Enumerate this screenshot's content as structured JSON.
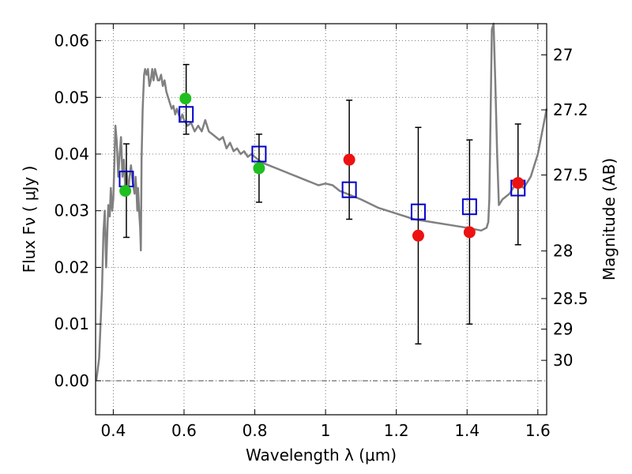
{
  "chart_data": {
    "type": "scatter",
    "title": "",
    "xlabel": "Wavelength  λ (μm)",
    "ylabel": "Flux  Fν  ( μJy )",
    "y2label": "Magnitude (AB)",
    "xlim": [
      0.35,
      1.625
    ],
    "ylim": [
      -0.006,
      0.063
    ],
    "grid": true,
    "legend": "none",
    "x_ticks": [
      {
        "value": 0.4,
        "label": "0.4"
      },
      {
        "value": 0.6,
        "label": "0.6"
      },
      {
        "value": 0.8,
        "label": "0.8"
      },
      {
        "value": 1.0,
        "label": "1"
      },
      {
        "value": 1.2,
        "label": "1.2"
      },
      {
        "value": 1.4,
        "label": "1.4"
      },
      {
        "value": 1.6,
        "label": "1.6"
      }
    ],
    "y_ticks": [
      {
        "value": 0.0,
        "label": "0.00"
      },
      {
        "value": 0.01,
        "label": "0.01"
      },
      {
        "value": 0.02,
        "label": "0.02"
      },
      {
        "value": 0.03,
        "label": "0.03"
      },
      {
        "value": 0.04,
        "label": "0.04"
      },
      {
        "value": 0.05,
        "label": "0.05"
      },
      {
        "value": 0.06,
        "label": "0.06"
      }
    ],
    "y2_ticks": [
      {
        "flux": 0.0575,
        "label": "27"
      },
      {
        "flux": 0.0478,
        "label": "27.2"
      },
      {
        "flux": 0.0363,
        "label": "27.5"
      },
      {
        "flux": 0.0229,
        "label": "28"
      },
      {
        "flux": 0.0145,
        "label": "28.5"
      },
      {
        "flux": 0.0091,
        "label": "29"
      },
      {
        "flux": 0.0036,
        "label": "30"
      }
    ],
    "series": [
      {
        "kind": "line",
        "color": "#808080",
        "x": [
          0.352,
          0.36,
          0.368,
          0.372,
          0.376,
          0.38,
          0.383,
          0.386,
          0.39,
          0.393,
          0.397,
          0.4,
          0.403,
          0.406,
          0.41,
          0.414,
          0.418,
          0.422,
          0.426,
          0.43,
          0.434,
          0.438,
          0.442,
          0.446,
          0.45,
          0.455,
          0.46,
          0.463,
          0.466,
          0.468,
          0.47,
          0.473,
          0.476,
          0.478,
          0.48,
          0.483,
          0.487,
          0.49,
          0.494,
          0.498,
          0.502,
          0.506,
          0.51,
          0.514,
          0.518,
          0.522,
          0.526,
          0.53,
          0.535,
          0.54,
          0.545,
          0.55,
          0.555,
          0.56,
          0.565,
          0.57,
          0.575,
          0.58,
          0.585,
          0.59,
          0.595,
          0.6,
          0.61,
          0.62,
          0.63,
          0.64,
          0.65,
          0.66,
          0.67,
          0.68,
          0.69,
          0.7,
          0.71,
          0.72,
          0.73,
          0.74,
          0.75,
          0.76,
          0.77,
          0.78,
          0.79,
          0.8,
          0.81,
          0.82,
          0.84,
          0.86,
          0.88,
          0.9,
          0.92,
          0.94,
          0.96,
          0.98,
          1.0,
          1.02,
          1.04,
          1.06,
          1.08,
          1.1,
          1.15,
          1.2,
          1.25,
          1.3,
          1.35,
          1.4,
          1.44,
          1.455,
          1.46,
          1.463,
          1.466,
          1.47,
          1.475,
          1.48,
          1.485,
          1.49,
          1.5,
          1.52,
          1.54,
          1.56,
          1.58,
          1.6,
          1.625
        ],
        "y": [
          0.0,
          0.004,
          0.016,
          0.026,
          0.03,
          0.02,
          0.026,
          0.031,
          0.029,
          0.034,
          0.03,
          0.032,
          0.038,
          0.045,
          0.042,
          0.036,
          0.04,
          0.043,
          0.036,
          0.039,
          0.034,
          0.037,
          0.033,
          0.036,
          0.038,
          0.035,
          0.033,
          0.036,
          0.033,
          0.03,
          0.034,
          0.03,
          0.027,
          0.023,
          0.039,
          0.048,
          0.054,
          0.055,
          0.054,
          0.055,
          0.052,
          0.053,
          0.055,
          0.053,
          0.055,
          0.054,
          0.053,
          0.053,
          0.054,
          0.052,
          0.053,
          0.051,
          0.05,
          0.049,
          0.048,
          0.0485,
          0.047,
          0.048,
          0.047,
          0.046,
          0.047,
          0.046,
          0.045,
          0.0455,
          0.044,
          0.045,
          0.044,
          0.046,
          0.044,
          0.0435,
          0.043,
          0.0425,
          0.043,
          0.041,
          0.042,
          0.0405,
          0.041,
          0.04,
          0.0405,
          0.0395,
          0.04,
          0.0395,
          0.039,
          0.0385,
          0.038,
          0.0375,
          0.037,
          0.0365,
          0.036,
          0.0355,
          0.035,
          0.0345,
          0.0348,
          0.0345,
          0.0335,
          0.033,
          0.0325,
          0.032,
          0.0305,
          0.0295,
          0.0285,
          0.028,
          0.0275,
          0.027,
          0.0265,
          0.027,
          0.028,
          0.032,
          0.045,
          0.062,
          0.063,
          0.052,
          0.04,
          0.031,
          0.032,
          0.033,
          0.035,
          0.034,
          0.036,
          0.04,
          0.048
        ]
      },
      {
        "kind": "open-square",
        "color": "#0000cc",
        "x": [
          0.437,
          0.606,
          0.812,
          1.067,
          1.262,
          1.407,
          1.544
        ],
        "y": [
          0.0356,
          0.047,
          0.04,
          0.0337,
          0.0298,
          0.0307,
          0.034
        ]
      },
      {
        "kind": "dot",
        "color": "#1fbf1f",
        "x": [
          0.434,
          0.604,
          0.812
        ],
        "y": [
          0.0335,
          0.0498,
          0.0375
        ]
      },
      {
        "kind": "dot",
        "color": "#ee1111",
        "x": [
          1.067,
          1.262,
          1.407,
          1.544
        ],
        "y": [
          0.039,
          0.0256,
          0.0262,
          0.0349
        ]
      },
      {
        "kind": "errorbar",
        "color": "#000000",
        "x": [
          0.437,
          0.606,
          0.812,
          1.067,
          1.262,
          1.407,
          1.544
        ],
        "y_low": [
          0.0253,
          0.0435,
          0.0315,
          0.0285,
          0.0065,
          0.01,
          0.024
        ],
        "y_high": [
          0.0418,
          0.0558,
          0.0435,
          0.0495,
          0.0447,
          0.0425,
          0.0453
        ]
      }
    ]
  }
}
